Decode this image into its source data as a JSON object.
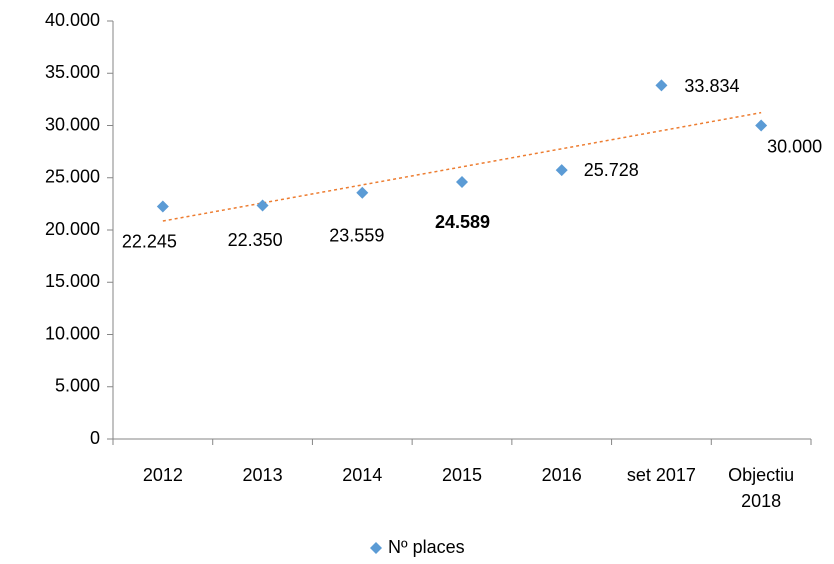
{
  "chart_data": {
    "type": "scatter",
    "categories": [
      "2012",
      "2013",
      "2014",
      "2015",
      "2016",
      "set 2017",
      "Objectiu 2018"
    ],
    "series": [
      {
        "name": "Nº places",
        "color": "#5b9bd5",
        "values": [
          22245,
          22350,
          23559,
          24589,
          25728,
          33834,
          30000
        ],
        "value_labels": [
          "22.245",
          "22.350",
          "23.559",
          "24.589",
          "25.728",
          "33.834",
          "30.000"
        ]
      }
    ],
    "ylim": [
      0,
      40000
    ],
    "yticks": [
      0,
      {
        "value": 5000,
        "label": "5.000"
      },
      {
        "value": 10000,
        "label": "10.000"
      },
      {
        "value": 15000,
        "label": "15.000"
      },
      {
        "value": 20000,
        "label": "20.000"
      },
      {
        "value": 25000,
        "label": "25.000"
      },
      {
        "value": 30000,
        "label": "30.000"
      },
      {
        "value": 35000,
        "label": "35.000"
      },
      {
        "value": 40000,
        "label": "40.000"
      }
    ],
    "trendline": {
      "type": "linear",
      "color": "#ed7d31"
    },
    "legend": "bottom"
  }
}
